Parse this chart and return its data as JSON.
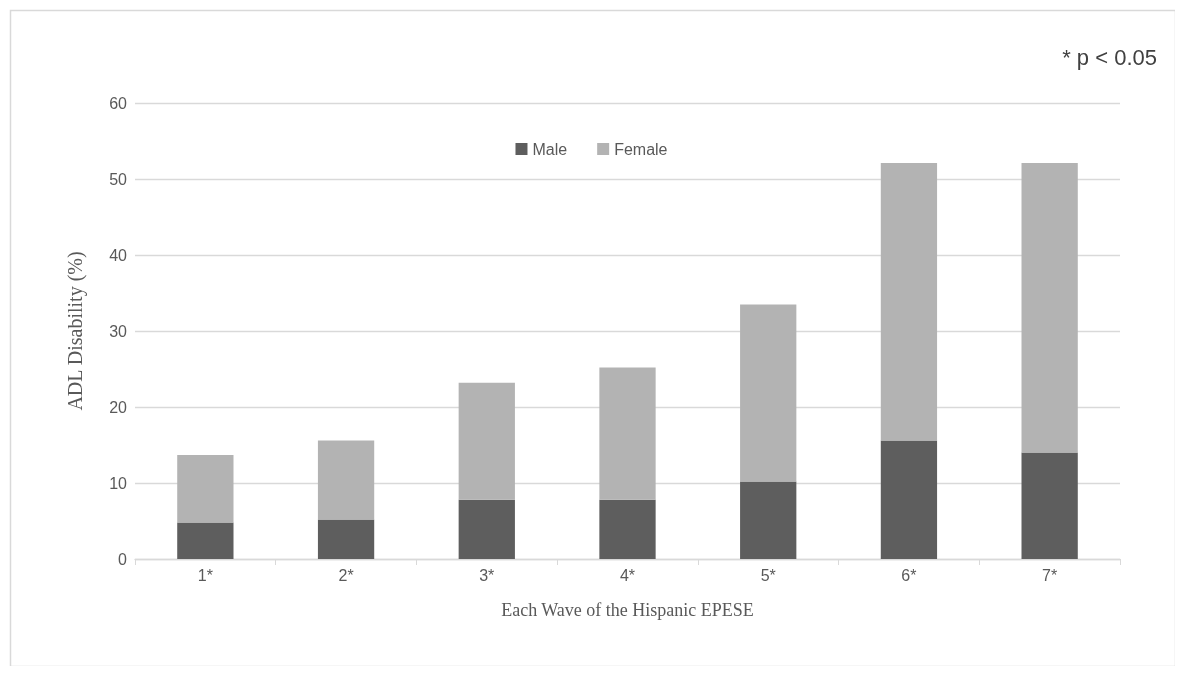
{
  "chart_data": {
    "type": "bar",
    "stacked": true,
    "xlabel": "Each Wave of the Hispanic EPESE",
    "ylabel": "ADL Disability (%)",
    "annotations": [
      "* p < 0.05"
    ],
    "categories": [
      "1*",
      "2*",
      "3*",
      "4*",
      "5*",
      "6*",
      "7*"
    ],
    "series": [
      {
        "name": "Male",
        "color": "#5e5e5e",
        "values": [
          4.8,
          5.2,
          7.8,
          7.8,
          10.2,
          15.6,
          14.0
        ]
      },
      {
        "name": "Female",
        "color": "#b3b3b3",
        "values": [
          8.9,
          10.4,
          15.4,
          17.4,
          23.3,
          36.5,
          38.1
        ]
      }
    ],
    "ylim": [
      0,
      60
    ],
    "yticks": [
      0,
      10,
      20,
      30,
      40,
      50,
      60
    ],
    "grid": "y",
    "legend": "top"
  }
}
